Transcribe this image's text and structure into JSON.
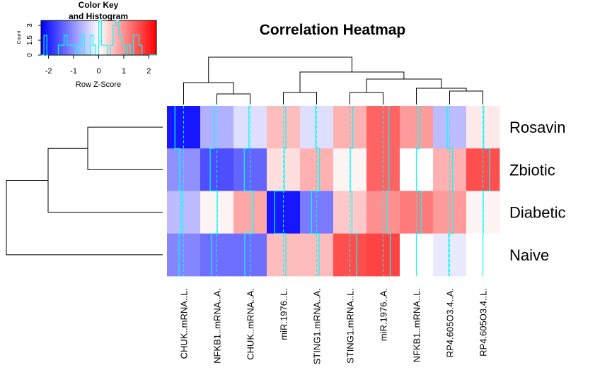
{
  "chart_data": {
    "type": "heatmap",
    "title": "Correlation Heatmap",
    "columns": [
      "CHUK..mRNA..L.",
      "NFKB1..mRNA..A.",
      "CHUK..mRNA..A.",
      "miR.1976..L.",
      "STING1.mRNA..A.",
      "STING1.mRNA..L.",
      "miR.1976..A.",
      "NFKB1..mRNA..L.",
      "RP4.605O3.4..A.",
      "RP4.605O3.4..L."
    ],
    "rows": [
      "Rosavin",
      "Zbiotic",
      "Diabetic",
      "Naive"
    ],
    "z_scores": [
      [
        -2.1,
        -0.7,
        -0.3,
        0.6,
        -0.3,
        0.7,
        1.4,
        0.9,
        -0.6,
        0.2
      ],
      [
        -1.0,
        -1.6,
        -1.4,
        0.3,
        0.7,
        0.1,
        1.4,
        0.0,
        0.7,
        1.6
      ],
      [
        -0.6,
        0.1,
        0.8,
        -2.1,
        -1.2,
        0.5,
        1.0,
        1.2,
        0.9,
        0.1
      ],
      [
        -1.1,
        -1.3,
        -1.3,
        0.6,
        0.6,
        1.6,
        1.7,
        0.0,
        -0.2,
        0.0
      ]
    ],
    "color_key": {
      "title_line1": "Color Key",
      "title_line2": "and Histogram",
      "xlabel": "Row Z-Score",
      "ylabel": "Count",
      "x_ticks": [
        "-2",
        "-1",
        "0",
        "1",
        "2"
      ],
      "x_range": [
        -2.3,
        2.3
      ],
      "y_ticks": [
        "0",
        "1.5",
        "3"
      ],
      "y_range": [
        0,
        3.5
      ],
      "low_color": "#0000ff",
      "mid_color": "#ffffff",
      "high_color": "#ff0000",
      "trace_color": "#00ffff"
    }
  }
}
